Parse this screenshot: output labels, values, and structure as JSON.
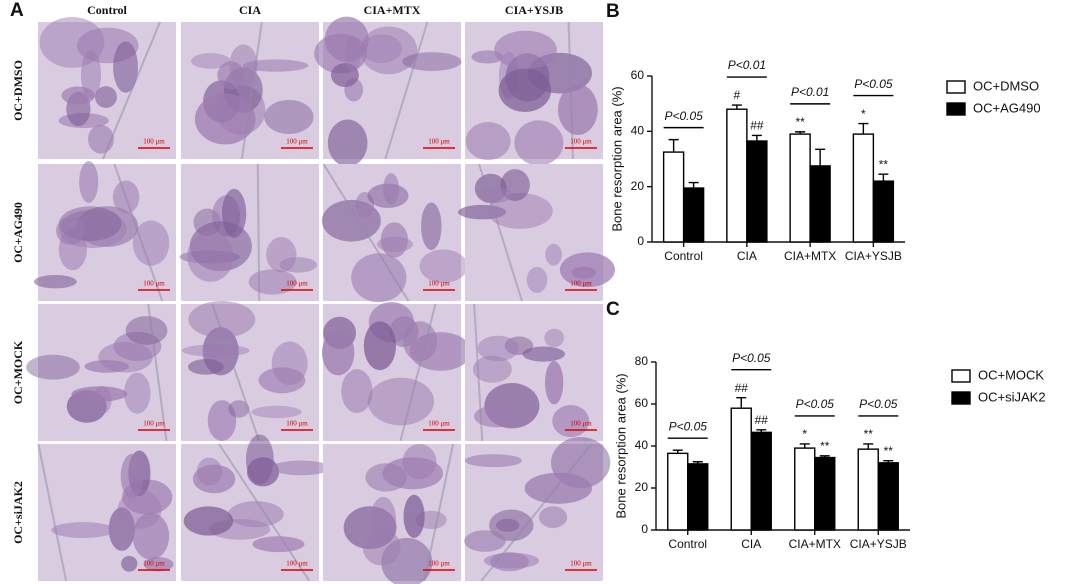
{
  "panel_a": {
    "label": "A",
    "columns": [
      "Control",
      "CIA",
      "CIA+MTX",
      "CIA+YSJB"
    ],
    "rows": [
      "OC+DMSO",
      "OC+AG490",
      "OC+MOCK",
      "OC+siJAK2"
    ],
    "scale_bar": "100 μm"
  },
  "chart_data": [
    {
      "type": "bar",
      "panel": "B",
      "ylabel": "Bone resorption area (%)",
      "categories": [
        "Control",
        "CIA",
        "CIA+MTX",
        "CIA+YSJB"
      ],
      "series": [
        {
          "name": "OC+DMSO",
          "color": "#ffffff",
          "values": [
            32.5,
            48,
            39,
            39
          ],
          "errors": [
            4.5,
            1.5,
            0.8,
            3.8
          ],
          "marks": [
            null,
            "#",
            "**",
            "*"
          ]
        },
        {
          "name": "OC+AG490",
          "color": "#000000",
          "values": [
            19.5,
            36.5,
            27.5,
            22
          ],
          "errors": [
            2,
            2,
            6,
            2.5
          ],
          "marks": [
            null,
            "##",
            null,
            "**"
          ]
        }
      ],
      "comparisons": [
        "P<0.05",
        "P<0.01",
        "P<0.01",
        "P<0.05"
      ],
      "ylim": [
        0,
        60
      ],
      "yticks": [
        0,
        20,
        40,
        60
      ],
      "legend": "right"
    },
    {
      "type": "bar",
      "panel": "C",
      "ylabel": "Bone resorption area (%)",
      "categories": [
        "Control",
        "CIA",
        "CIA+MTX",
        "CIA+YSJB"
      ],
      "series": [
        {
          "name": "OC+MOCK",
          "color": "#ffffff",
          "values": [
            36.5,
            58,
            39,
            38.5
          ],
          "errors": [
            1.5,
            5,
            2,
            2.5
          ],
          "marks": [
            null,
            "##",
            "*",
            "**"
          ]
        },
        {
          "name": "OC+siJAK2",
          "color": "#000000",
          "values": [
            31.5,
            46.5,
            34.5,
            32
          ],
          "errors": [
            1,
            1.2,
            0.8,
            1
          ],
          "marks": [
            null,
            "##",
            "**",
            "**"
          ]
        }
      ],
      "comparisons": [
        "P<0.05",
        "P<0.05",
        "P<0.05",
        "P<0.05"
      ],
      "ylim": [
        0,
        80
      ],
      "yticks": [
        0,
        20,
        40,
        60,
        80
      ],
      "legend": "right"
    }
  ]
}
